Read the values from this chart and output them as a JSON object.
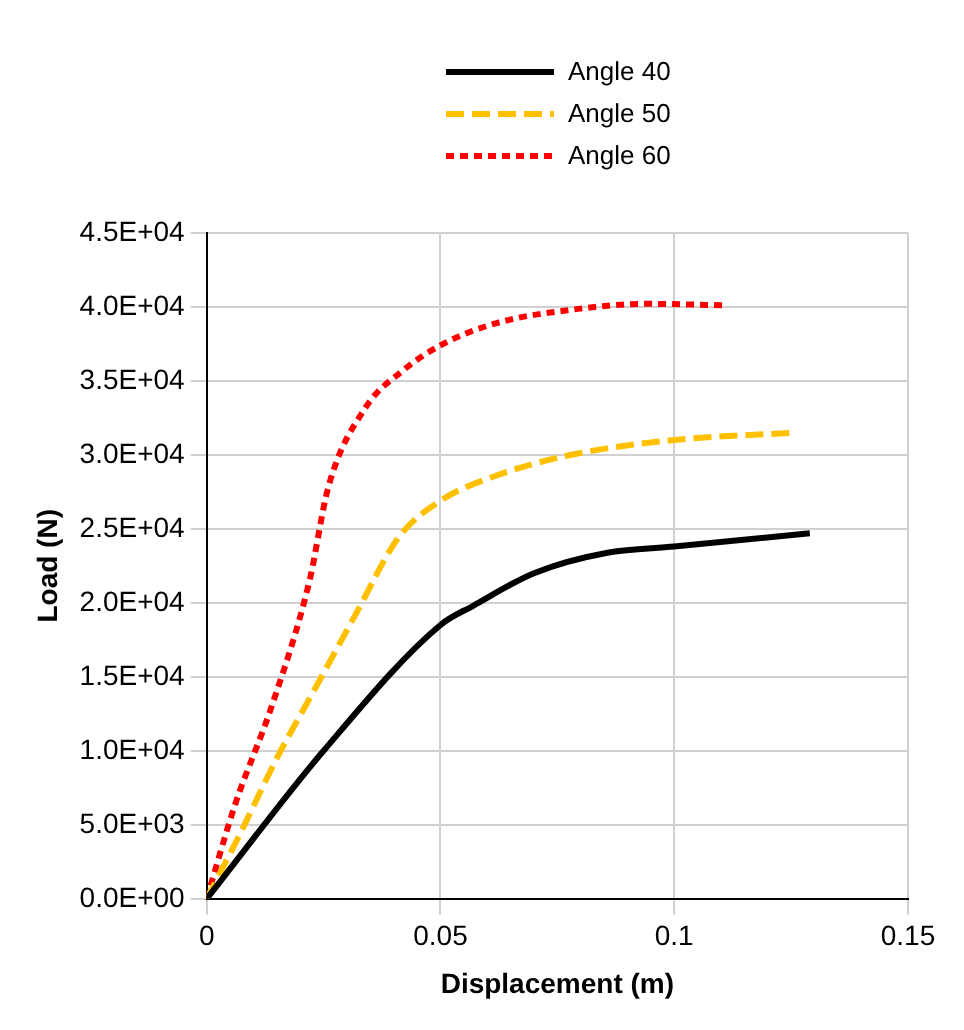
{
  "chart_data": {
    "type": "line",
    "xlabel": "Displacement (m)",
    "ylabel": "Load (N)",
    "legend": "top",
    "grid": true,
    "marker": "none",
    "xlim": [
      0,
      0.15
    ],
    "xticks": [
      0,
      0.05,
      0.1,
      0.15
    ],
    "ylim": [
      0,
      45000
    ],
    "yticks": [
      {
        "value": 0,
        "label": "0.0E+00"
      },
      {
        "value": 5000,
        "label": "5.0E+03"
      },
      {
        "value": 10000,
        "label": "1.0E+04"
      },
      {
        "value": 15000,
        "label": "1.5E+04"
      },
      {
        "value": 20000,
        "label": "2.0E+04"
      },
      {
        "value": 25000,
        "label": "2.5E+04"
      },
      {
        "value": 30000,
        "label": "3.0E+04"
      },
      {
        "value": 35000,
        "label": "3.5E+04"
      },
      {
        "value": 40000,
        "label": "4.0E+04"
      },
      {
        "value": 45000,
        "label": "4.5E+04"
      }
    ],
    "series": [
      {
        "name": "Angle 40",
        "color": "#000000",
        "line_style": "solid",
        "x": [
          0,
          0.025,
          0.05,
          0.057,
          0.07,
          0.086,
          0.1,
          0.129
        ],
        "values": [
          0,
          10000,
          18500,
          19800,
          22000,
          23400,
          23800,
          24700
        ]
      },
      {
        "name": "Angle 50",
        "color": "#ffc000",
        "line_style": "dashed",
        "x": [
          0,
          0.007,
          0.015,
          0.023,
          0.032,
          0.041,
          0.05,
          0.062,
          0.078,
          0.1,
          0.126
        ],
        "values": [
          0,
          4300,
          9500,
          14100,
          19300,
          24400,
          26900,
          28600,
          30000,
          31000,
          31500
        ]
      },
      {
        "name": "Angle 60",
        "color": "#ff0000",
        "line_style": "dotted",
        "x": [
          0,
          0.006,
          0.014,
          0.022,
          0.026,
          0.034,
          0.042,
          0.05,
          0.062,
          0.078,
          0.094,
          0.111
        ],
        "values": [
          0,
          6300,
          13100,
          21500,
          27800,
          33200,
          35700,
          37400,
          38900,
          39800,
          40200,
          40100
        ]
      }
    ]
  }
}
